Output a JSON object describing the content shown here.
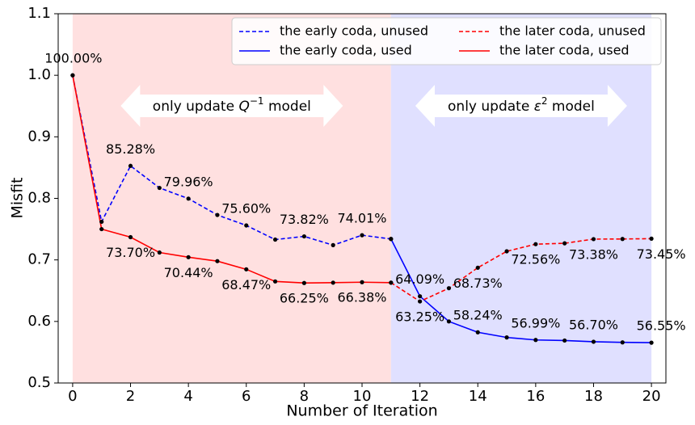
{
  "chart_data": {
    "type": "line",
    "xlabel": "Number of Iteration",
    "ylabel": "Misfit",
    "x": [
      0,
      1,
      2,
      3,
      4,
      5,
      6,
      7,
      8,
      9,
      10,
      11,
      12,
      13,
      14,
      15,
      16,
      17,
      18,
      19,
      20
    ],
    "xlim": [
      -0.5,
      20.5
    ],
    "xticks": [
      0,
      2,
      4,
      6,
      8,
      10,
      12,
      14,
      16,
      18,
      20
    ],
    "ylim": [
      0.5,
      1.1
    ],
    "yticks": [
      0.5,
      0.6,
      0.7,
      0.8,
      0.9,
      {
        "value": 1.0,
        "label": "1.0"
      },
      1.1
    ],
    "legend": "upper right",
    "shaded_regions": [
      {
        "xrange": [
          0,
          11
        ],
        "color": "#ffe0e0"
      },
      {
        "xrange": [
          11,
          20
        ],
        "color": "#e0e0ff"
      }
    ],
    "annotations": [
      {
        "prefix": "only update ",
        "symbol": "Q",
        "superscript": "−1",
        "suffix": " model"
      },
      {
        "prefix": "only update ",
        "symbol": "ε",
        "superscript": "2",
        "suffix": " model"
      }
    ],
    "series": [
      {
        "name": "the early coda, unused",
        "color": "#0000ff",
        "dashed": true,
        "values": [
          1.0,
          0.762,
          0.8528,
          0.817,
          0.7996,
          0.773,
          0.756,
          0.733,
          0.7382,
          0.724,
          0.7401,
          0.734,
          null,
          null,
          null,
          null,
          null,
          null,
          null,
          null,
          null
        ],
        "value_labels": [
          "100.00%",
          null,
          "85.28%",
          null,
          "79.96%",
          null,
          "75.60%",
          null,
          "73.82%",
          null,
          "74.01%",
          null,
          null,
          null,
          null,
          null,
          null,
          null,
          null,
          null,
          null
        ]
      },
      {
        "name": "the early coda, used",
        "color": "#0000ff",
        "dashed": false,
        "values": [
          null,
          null,
          null,
          null,
          null,
          null,
          null,
          null,
          null,
          null,
          null,
          0.734,
          0.6409,
          0.6,
          0.5824,
          0.574,
          0.5699,
          0.569,
          0.567,
          0.566,
          0.5655
        ],
        "value_labels": [
          null,
          null,
          null,
          null,
          null,
          null,
          null,
          null,
          null,
          null,
          null,
          null,
          "64.09%",
          null,
          "58.24%",
          null,
          "56.99%",
          null,
          "56.70%",
          null,
          "56.55%"
        ]
      },
      {
        "name": "the later coda, unused",
        "color": "#ff0000",
        "dashed": true,
        "values": [
          null,
          null,
          null,
          null,
          null,
          null,
          null,
          null,
          null,
          null,
          null,
          0.663,
          0.6325,
          0.654,
          0.6873,
          0.714,
          0.7256,
          0.727,
          0.7338,
          0.734,
          0.7345
        ],
        "value_labels": [
          null,
          null,
          null,
          null,
          null,
          null,
          null,
          null,
          null,
          null,
          null,
          null,
          "63.25%",
          null,
          "68.73%",
          null,
          "72.56%",
          null,
          "73.38%",
          null,
          "73.45%"
        ]
      },
      {
        "name": "the later coda, used",
        "color": "#ff0000",
        "dashed": false,
        "values": [
          1.0,
          0.75,
          0.737,
          0.712,
          0.7044,
          0.698,
          0.6847,
          0.665,
          0.6625,
          0.663,
          0.6638,
          0.663,
          null,
          null,
          null,
          null,
          null,
          null,
          null,
          null,
          null
        ],
        "value_labels": [
          null,
          null,
          "73.70%",
          null,
          "70.44%",
          null,
          "68.47%",
          null,
          "66.25%",
          null,
          "66.38%",
          null,
          null,
          null,
          null,
          null,
          null,
          null,
          null,
          null,
          null
        ]
      }
    ]
  }
}
